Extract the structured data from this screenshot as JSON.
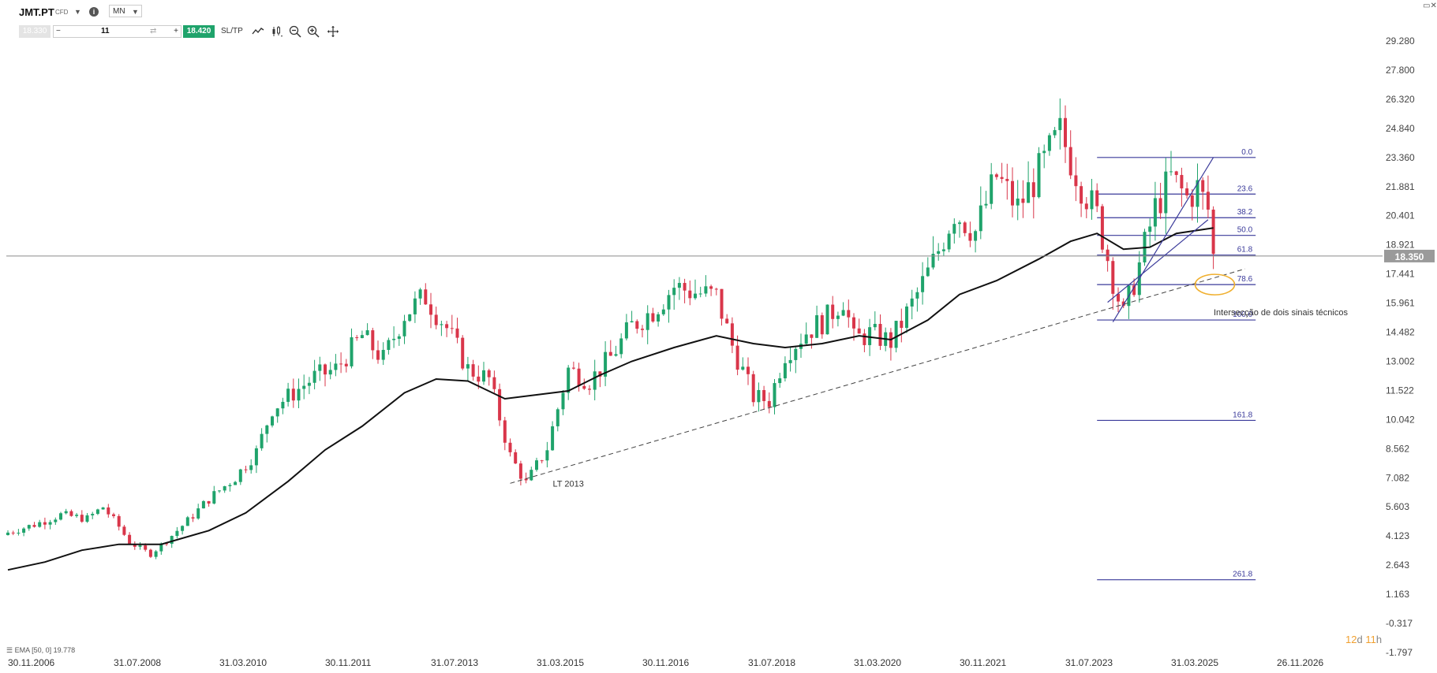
{
  "toolbar": {
    "symbol": "JMT.PT",
    "instrument_type": "CFD",
    "timeframe": "MN",
    "bid_price": "18.330",
    "quantity": "11",
    "ask_price": "18.420",
    "sltp_label": "SL/TP",
    "icons": [
      "chevron-down-icon",
      "info-icon",
      "line-chart-icon",
      "candles-icon",
      "zoom-out-icon",
      "zoom-in-icon",
      "crosshair-icon",
      "close-icon"
    ]
  },
  "indicator_label": "EMA [50, 0] 19.778",
  "timer": {
    "days": "12",
    "d_unit": "d",
    "hours": "11",
    "h_unit": "h"
  },
  "colors": {
    "up": "#1fa36b",
    "down": "#d9364a",
    "ema": "#111111",
    "fib": "#3a3a9a",
    "annotation": "#f0b030",
    "price_tag": "#9a9a9a"
  },
  "chart_data": {
    "type": "candlestick",
    "title": "",
    "ylim": [
      -1.797,
      29.28
    ],
    "y_ticks": [
      "29.280",
      "27.800",
      "26.320",
      "24.840",
      "23.360",
      "21.881",
      "20.401",
      "18.921",
      "17.441",
      "15.961",
      "14.482",
      "13.002",
      "11.522",
      "10.042",
      "8.562",
      "7.082",
      "5.603",
      "4.123",
      "2.643",
      "1.163",
      "-0.317",
      "-1.797"
    ],
    "x_ticks": [
      "30.11.2006",
      "31.07.2008",
      "31.03.2010",
      "30.11.2011",
      "31.07.2013",
      "31.03.2015",
      "30.11.2016",
      "31.07.2018",
      "31.03.2020",
      "30.11.2021",
      "31.07.2023",
      "31.03.2025",
      "26.11.2026"
    ],
    "last_price": "18.350",
    "current_price_line": 18.35,
    "close_path": [
      [
        "2006-11",
        4.3
      ],
      [
        "2007-04",
        4.7
      ],
      [
        "2007-09",
        5.2
      ],
      [
        "2008-02",
        5.0
      ],
      [
        "2008-05",
        5.6
      ],
      [
        "2008-08",
        4.6
      ],
      [
        "2008-10",
        3.8
      ],
      [
        "2009-02",
        3.2
      ],
      [
        "2009-05",
        3.9
      ],
      [
        "2009-09",
        4.9
      ],
      [
        "2010-01",
        6.0
      ],
      [
        "2010-06",
        7.1
      ],
      [
        "2010-10",
        8.4
      ],
      [
        "2011-01",
        10.6
      ],
      [
        "2011-05",
        11.4
      ],
      [
        "2011-09",
        12.2
      ],
      [
        "2012-01",
        12.6
      ],
      [
        "2012-06",
        14.3
      ],
      [
        "2012-10",
        13.1
      ],
      [
        "2013-02",
        15.4
      ],
      [
        "2013-06",
        16.3
      ],
      [
        "2013-10",
        14.7
      ],
      [
        "2014-02",
        12.6
      ],
      [
        "2014-06",
        12.1
      ],
      [
        "2014-10",
        8.2
      ],
      [
        "2015-01",
        6.8
      ],
      [
        "2015-05",
        8.6
      ],
      [
        "2015-09",
        12.6
      ],
      [
        "2016-01",
        12.0
      ],
      [
        "2016-05",
        13.2
      ],
      [
        "2016-09",
        14.8
      ],
      [
        "2017-01",
        15.6
      ],
      [
        "2017-05",
        16.8
      ],
      [
        "2017-09",
        16.5
      ],
      [
        "2018-01",
        16.3
      ],
      [
        "2018-04",
        13.8
      ],
      [
        "2018-08",
        11.2
      ],
      [
        "2018-11",
        11.0
      ],
      [
        "2019-02",
        13.4
      ],
      [
        "2019-06",
        14.5
      ],
      [
        "2019-10",
        15.2
      ],
      [
        "2020-01",
        16.2
      ],
      [
        "2020-03",
        14.1
      ],
      [
        "2020-06",
        14.4
      ],
      [
        "2020-10",
        14.0
      ],
      [
        "2021-02",
        15.9
      ],
      [
        "2021-06",
        18.0
      ],
      [
        "2021-10",
        20.6
      ],
      [
        "2022-02",
        19.6
      ],
      [
        "2022-06",
        22.4
      ],
      [
        "2022-10",
        20.8
      ],
      [
        "2023-02",
        22.6
      ],
      [
        "2023-06",
        24.6
      ],
      [
        "2023-10",
        22.0
      ],
      [
        "2024-01",
        20.4
      ],
      [
        "2024-04",
        17.2
      ],
      [
        "2024-06",
        15.3
      ],
      [
        "2024-09",
        17.9
      ],
      [
        "2024-12",
        20.8
      ],
      [
        "2025-03",
        22.3
      ],
      [
        "2025-06",
        21.3
      ],
      [
        "2025-08",
        21.8
      ],
      [
        "2025-10",
        20.7
      ],
      [
        "2025-11",
        18.35
      ]
    ],
    "series": [
      {
        "type": "ema",
        "name": "EMA [50, 0]",
        "points": [
          [
            "2006-11",
            2.4
          ],
          [
            "2007-06",
            2.8
          ],
          [
            "2008-01",
            3.4
          ],
          [
            "2008-08",
            3.7
          ],
          [
            "2009-04",
            3.7
          ],
          [
            "2010-01",
            4.4
          ],
          [
            "2010-08",
            5.3
          ],
          [
            "2011-04",
            6.9
          ],
          [
            "2011-11",
            8.5
          ],
          [
            "2012-06",
            9.7
          ],
          [
            "2013-02",
            11.4
          ],
          [
            "2013-08",
            12.1
          ],
          [
            "2014-02",
            12.0
          ],
          [
            "2014-09",
            11.1
          ],
          [
            "2015-03",
            11.3
          ],
          [
            "2015-09",
            11.5
          ],
          [
            "2016-03",
            12.3
          ],
          [
            "2016-09",
            13.0
          ],
          [
            "2017-05",
            13.7
          ],
          [
            "2018-01",
            14.3
          ],
          [
            "2018-08",
            13.9
          ],
          [
            "2019-02",
            13.7
          ],
          [
            "2019-09",
            13.9
          ],
          [
            "2020-04",
            14.3
          ],
          [
            "2020-10",
            14.1
          ],
          [
            "2021-05",
            15.1
          ],
          [
            "2021-11",
            16.4
          ],
          [
            "2022-06",
            17.1
          ],
          [
            "2023-02",
            18.2
          ],
          [
            "2023-08",
            19.1
          ],
          [
            "2024-01",
            19.5
          ],
          [
            "2024-06",
            18.7
          ],
          [
            "2024-11",
            18.8
          ],
          [
            "2025-04",
            19.5
          ],
          [
            "2025-09",
            19.7
          ],
          [
            "2025-11",
            19.778
          ]
        ]
      }
    ],
    "trendline": {
      "name": "LT 2013",
      "label": "LT 2013",
      "start": [
        "2014-10",
        6.8
      ],
      "end": [
        "2026-05",
        17.7
      ],
      "style": "dashed"
    },
    "fibonacci": {
      "start_date": "2024-01",
      "end_date": "2026-07",
      "levels": [
        {
          "ratio": "0.0",
          "price": 23.36
        },
        {
          "ratio": "23.6",
          "price": 21.5
        },
        {
          "ratio": "38.2",
          "price": 20.3
        },
        {
          "ratio": "50.0",
          "price": 19.4
        },
        {
          "ratio": "61.8",
          "price": 18.4
        },
        {
          "ratio": "78.6",
          "price": 16.9
        },
        {
          "ratio": "100.0",
          "price": 15.1
        },
        {
          "ratio": "161.8",
          "price": 10.0
        },
        {
          "ratio": "261.8",
          "price": 1.9
        }
      ]
    },
    "channel": {
      "lower": [
        [
          "2024-04",
          15.0
        ],
        [
          "2025-11",
          23.36
        ]
      ],
      "upper": [
        [
          "2024-03",
          16.0
        ],
        [
          "2025-10",
          20.2
        ]
      ]
    },
    "annotation": {
      "text": "Intersecção de dois sinais técnicos",
      "target": [
        "2025-08",
        16.9
      ]
    }
  }
}
